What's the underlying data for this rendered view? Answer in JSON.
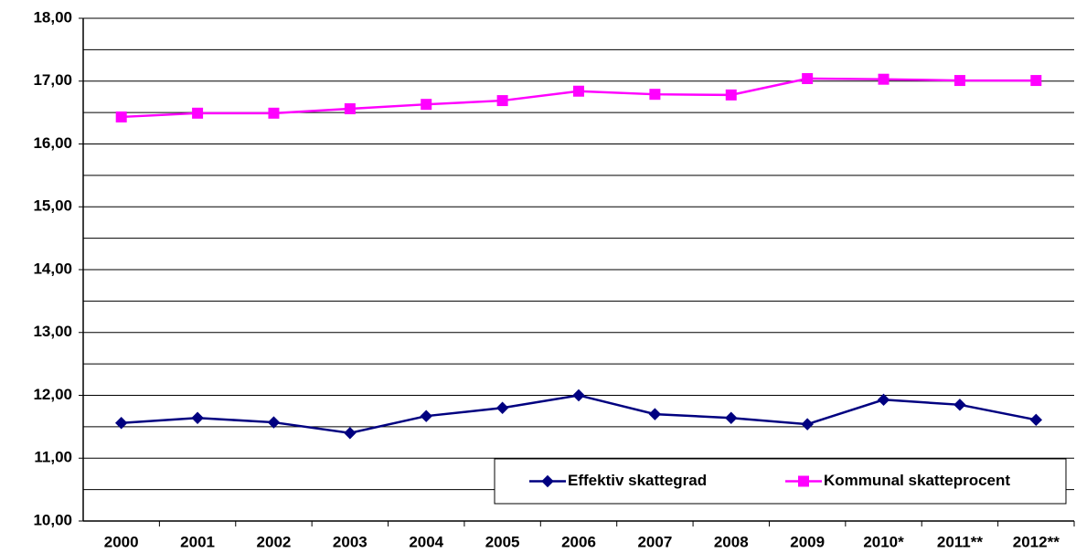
{
  "chart_data": {
    "type": "line",
    "categories": [
      "2000",
      "2001",
      "2002",
      "2003",
      "2004",
      "2005",
      "2006",
      "2007",
      "2008",
      "2009",
      "2010*",
      "2011**",
      "2012**"
    ],
    "series": [
      {
        "name": "Effektiv skattegrad",
        "color": "#000080",
        "marker": "diamond",
        "values": [
          11.56,
          11.64,
          11.57,
          11.4,
          11.67,
          11.8,
          12.0,
          11.7,
          11.64,
          11.54,
          11.93,
          11.85,
          11.61
        ]
      },
      {
        "name": "Kommunal skatteprocent",
        "color": "#ff00ff",
        "marker": "square",
        "values": [
          16.43,
          16.49,
          16.49,
          16.56,
          16.63,
          16.69,
          16.84,
          16.79,
          16.78,
          17.04,
          17.03,
          17.01,
          17.01
        ]
      }
    ],
    "ylim": [
      10,
      18
    ],
    "yticks": [
      {
        "value": 10,
        "label": "10,00"
      },
      {
        "value": 11,
        "label": "11,00"
      },
      {
        "value": 12,
        "label": "12,00"
      },
      {
        "value": 13,
        "label": "13,00"
      },
      {
        "value": 14,
        "label": "14,00"
      },
      {
        "value": 15,
        "label": "15,00"
      },
      {
        "value": 16,
        "label": "16,00"
      },
      {
        "value": 17,
        "label": "17,00"
      },
      {
        "value": 18,
        "label": "18,00"
      }
    ],
    "minor_yticks": [
      10.5,
      11.5,
      12.5,
      13.5,
      14.5,
      15.5,
      16.5,
      17.5
    ],
    "grid": true,
    "legend": "lower right"
  }
}
